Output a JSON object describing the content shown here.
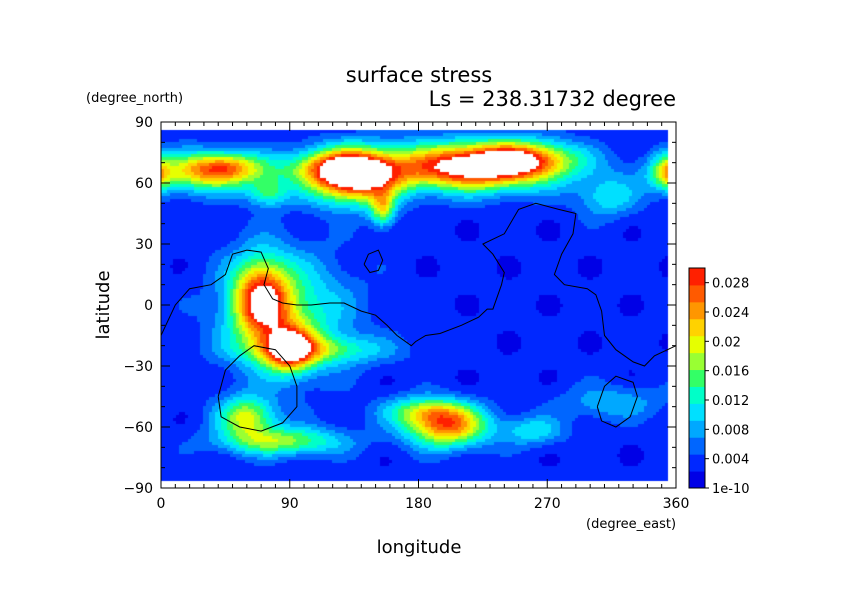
{
  "chart_data": {
    "type": "heatmap",
    "title": "surface stress",
    "subtitle": "Ls = 238.31732 degree",
    "xlabel": "longitude",
    "ylabel": "latitude",
    "x_units": "(degree_east)",
    "y_units": "(degree_north)",
    "xlim": [
      0,
      360
    ],
    "ylim": [
      -90,
      90
    ],
    "x_ticks": [
      "0",
      "90",
      "180",
      "270",
      "360"
    ],
    "y_ticks": [
      "90",
      "60",
      "30",
      "0",
      "−30",
      "−60",
      "−90"
    ],
    "x_tick_values": [
      0,
      90,
      180,
      270,
      360
    ],
    "y_tick_values": [
      90,
      60,
      30,
      0,
      -30,
      -60,
      -90
    ],
    "colorbar": {
      "labels": [
        "0.028",
        "0.024",
        "0.02",
        "0.016",
        "0.012",
        "0.008",
        "0.004",
        "1e-10"
      ],
      "label_values": [
        0.028,
        0.024,
        0.02,
        0.016,
        0.012,
        0.008,
        0.004,
        0.0
      ],
      "range": [
        0,
        0.03
      ],
      "colors": [
        "#0000e6",
        "#0028ff",
        "#0066ff",
        "#00a8ff",
        "#00e0ff",
        "#00ffc8",
        "#33ff66",
        "#99ff33",
        "#e6ff00",
        "#ffd200",
        "#ff9600",
        "#ff5a00",
        "#ff2000"
      ]
    },
    "background_value": 0.003,
    "blobs": [
      {
        "lon": 30,
        "lat": 65,
        "slon": 30,
        "slat": 7,
        "v": 0.016
      },
      {
        "lon": 45,
        "lat": 68,
        "slon": 18,
        "slat": 5,
        "v": 0.012
      },
      {
        "lon": 135,
        "lat": 63,
        "slon": 22,
        "slat": 9,
        "v": 0.03
      },
      {
        "lon": 120,
        "lat": 68,
        "slon": 25,
        "slat": 6,
        "v": 0.012
      },
      {
        "lon": 218,
        "lat": 68,
        "slon": 40,
        "slat": 8,
        "v": 0.031
      },
      {
        "lon": 255,
        "lat": 72,
        "slon": 25,
        "slat": 6,
        "v": 0.014
      },
      {
        "lon": 355,
        "lat": 65,
        "slon": 8,
        "slat": 6,
        "v": 0.014
      },
      {
        "lon": 312,
        "lat": 53,
        "slon": 15,
        "slat": 7,
        "v": 0.008
      },
      {
        "lon": 155,
        "lat": 47,
        "slon": 6,
        "slat": 6,
        "v": 0.014
      },
      {
        "lon": 75,
        "lat": 55,
        "slon": 10,
        "slat": 5,
        "v": 0.01
      },
      {
        "lon": 70,
        "lat": 3,
        "slon": 14,
        "slat": 14,
        "v": 0.022
      },
      {
        "lon": 88,
        "lat": -5,
        "slon": 30,
        "slat": 20,
        "v": 0.012
      },
      {
        "lon": 90,
        "lat": -22,
        "slon": 12,
        "slat": 8,
        "v": 0.02
      },
      {
        "lon": 110,
        "lat": -22,
        "slon": 35,
        "slat": 5,
        "v": 0.01
      },
      {
        "lon": 60,
        "lat": -55,
        "slon": 14,
        "slat": 7,
        "v": 0.016
      },
      {
        "lon": 85,
        "lat": -67,
        "slon": 30,
        "slat": 5,
        "v": 0.014
      },
      {
        "lon": 200,
        "lat": -60,
        "slon": 20,
        "slat": 7,
        "v": 0.022
      },
      {
        "lon": 185,
        "lat": -52,
        "slon": 20,
        "slat": 5,
        "v": 0.012
      },
      {
        "lon": 260,
        "lat": -62,
        "slon": 15,
        "slat": 5,
        "v": 0.008
      },
      {
        "lon": 315,
        "lat": -48,
        "slon": 25,
        "slat": 6,
        "v": 0.006
      }
    ],
    "contour_lines": [
      [
        [
          0,
          -15
        ],
        [
          10,
          0
        ],
        [
          20,
          8
        ],
        [
          35,
          10
        ],
        [
          45,
          15
        ],
        [
          50,
          25
        ],
        [
          60,
          27
        ],
        [
          70,
          26
        ],
        [
          75,
          18
        ],
        [
          72,
          10
        ],
        [
          78,
          3
        ],
        [
          85,
          1
        ],
        [
          95,
          0
        ],
        [
          105,
          0
        ],
        [
          118,
          1
        ],
        [
          128,
          1
        ],
        [
          140,
          -3
        ],
        [
          150,
          -5
        ],
        [
          158,
          -10
        ],
        [
          165,
          -15
        ],
        [
          175,
          -20
        ],
        [
          178,
          -18
        ],
        [
          185,
          -15
        ],
        [
          195,
          -14
        ],
        [
          210,
          -10
        ],
        [
          222,
          -6
        ],
        [
          228,
          -2
        ],
        [
          232,
          -2
        ],
        [
          238,
          10
        ],
        [
          240,
          16
        ],
        [
          232,
          25
        ],
        [
          225,
          30
        ],
        [
          240,
          35
        ],
        [
          250,
          47
        ],
        [
          262,
          50
        ],
        [
          278,
          47
        ],
        [
          290,
          45
        ],
        [
          288,
          35
        ],
        [
          280,
          25
        ],
        [
          275,
          15
        ],
        [
          282,
          10
        ],
        [
          298,
          8
        ],
        [
          304,
          5
        ],
        [
          308,
          -3
        ],
        [
          310,
          -15
        ],
        [
          318,
          -22
        ],
        [
          330,
          -28
        ],
        [
          338,
          -30
        ],
        [
          345,
          -25
        ],
        [
          360,
          -20
        ]
      ],
      [
        [
          142,
          20
        ],
        [
          145,
          25
        ],
        [
          152,
          27
        ],
        [
          155,
          22
        ],
        [
          152,
          17
        ],
        [
          146,
          16
        ],
        [
          142,
          20
        ]
      ],
      [
        [
          40,
          -45
        ],
        [
          45,
          -32
        ],
        [
          55,
          -25
        ],
        [
          65,
          -20
        ],
        [
          80,
          -22
        ],
        [
          90,
          -30
        ],
        [
          95,
          -40
        ],
        [
          95,
          -50
        ],
        [
          85,
          -58
        ],
        [
          70,
          -62
        ],
        [
          55,
          -60
        ],
        [
          42,
          -55
        ],
        [
          40,
          -45
        ]
      ],
      [
        [
          305,
          -50
        ],
        [
          310,
          -40
        ],
        [
          318,
          -35
        ],
        [
          330,
          -38
        ],
        [
          333,
          -45
        ],
        [
          328,
          -55
        ],
        [
          318,
          -60
        ],
        [
          308,
          -57
        ],
        [
          305,
          -50
        ]
      ]
    ]
  }
}
